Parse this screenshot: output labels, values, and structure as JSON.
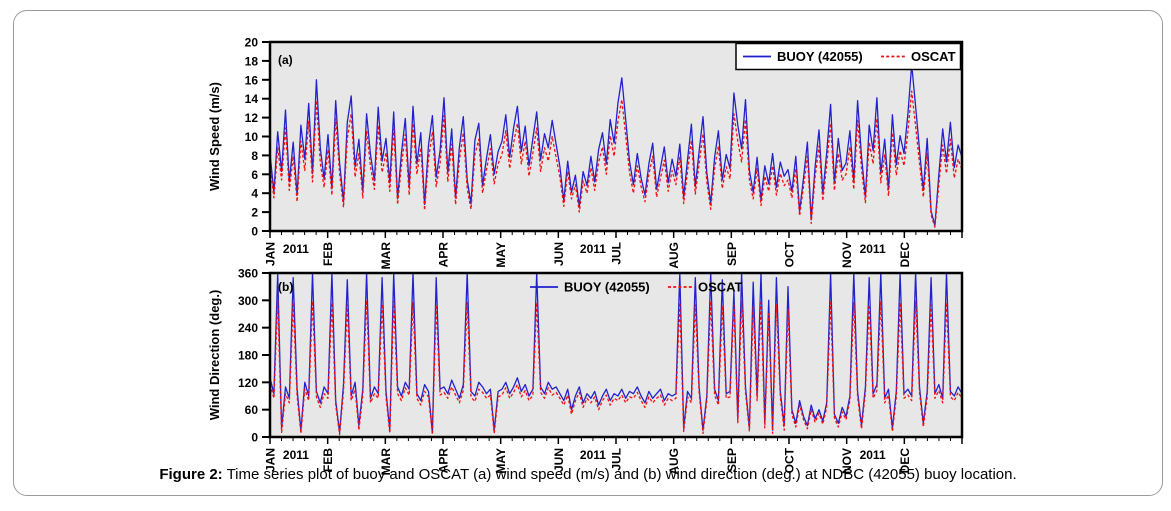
{
  "figure": {
    "caption_label": "Figure 2:",
    "caption_text": " Time series plot of buoy and OSCAT (a) wind speed (m/s) and (b) wind direction (deg.) at NDBC (42055) buoy location."
  },
  "colors": {
    "buoy_line": "#2222CC",
    "oscat_line": "#EE1111",
    "plot_background": "#E7E7E7",
    "frame": "#000000",
    "outer_border": "#9B9B9B"
  },
  "chart_data": [
    {
      "type": "line",
      "panel_label": "(a)",
      "ylabel": "Wind Speed (m/s)",
      "ylim": [
        0,
        20
      ],
      "yticks": [
        0,
        2,
        4,
        6,
        8,
        10,
        12,
        14,
        16,
        18,
        20
      ],
      "grid": false,
      "x_axis": {
        "months": [
          "JAN",
          "FEB",
          "MAR",
          "APR",
          "MAY",
          "JUN",
          "JUL",
          "AUG",
          "SEP",
          "OCT",
          "NOV",
          "DEC"
        ],
        "year_label": "2011",
        "year_positions": [
          0.45,
          5.6,
          10.45
        ]
      },
      "legend": {
        "boxed": true,
        "position": "top-right",
        "entries": [
          {
            "label": "BUOY (42055)",
            "color": "#2222CC",
            "dash": false
          },
          {
            "label": "OSCAT",
            "color": "#EE1111",
            "dash": true
          }
        ]
      },
      "series": [
        {
          "name": "BUOY (42055)",
          "color": "#2222CC",
          "dash": false,
          "values": [
            8.2,
            4.1,
            10.5,
            6.3,
            12.8,
            5.2,
            9.4,
            3.8,
            11.2,
            7.6,
            13.5,
            6.1,
            16.0,
            8.8,
            5.5,
            10.2,
            4.5,
            13.8,
            7.2,
            3.1,
            11.5,
            14.3,
            6.8,
            9.7,
            4.2,
            12.4,
            8.1,
            5.3,
            13.1,
            7.4,
            9.8,
            5.1,
            12.6,
            3.4,
            8.2,
            11.9,
            4.6,
            13.2,
            7.1,
            10.4,
            2.8,
            9.1,
            12.2,
            5.7,
            8.5,
            14.1,
            6.2,
            10.8,
            3.5,
            8.9,
            12.1,
            5.4,
            2.9,
            9.6,
            11.4,
            4.8,
            7.7,
            10.2,
            6.0,
            8.4,
            9.5,
            12.3,
            7.8,
            10.9,
            13.2,
            8.4,
            11.1,
            6.9,
            9.8,
            12.6,
            7.5,
            10.3,
            8.8,
            11.7,
            9.2,
            6.8,
            3.2,
            7.4,
            4.1,
            5.9,
            2.6,
            6.3,
            4.8,
            7.9,
            5.2,
            8.6,
            10.4,
            7.1,
            11.8,
            9.3,
            13.5,
            16.2,
            11.8,
            7.4,
            4.9,
            8.2,
            5.6,
            3.8,
            7.1,
            9.3,
            4.4,
            6.7,
            8.9,
            5.1,
            7.6,
            5.8,
            9.2,
            3.6,
            7.5,
            11.3,
            4.7,
            8.4,
            12.1,
            6.2,
            2.9,
            7.8,
            10.6,
            5.4,
            8.1,
            6.6,
            14.6,
            11.2,
            8.7,
            13.9,
            6.4,
            4.1,
            7.8,
            3.3,
            6.9,
            5.0,
            8.2,
            4.6,
            7.3,
            5.8,
            6.5,
            4.2,
            7.9,
            2.1,
            5.6,
            9.4,
            1.2,
            6.8,
            10.7,
            3.9,
            8.3,
            13.4,
            5.1,
            9.8,
            6.4,
            7.2,
            10.6,
            5.3,
            13.8,
            7.9,
            3.6,
            11.2,
            8.5,
            14.1,
            6.1,
            9.7,
            4.4,
            12.3,
            7.0,
            10.1,
            8.2,
            12.4,
            17.6,
            13.2,
            8.6,
            4.3,
            9.8,
            2.1,
            0.6,
            5.9,
            10.8,
            7.3,
            11.5,
            6.7,
            9.1,
            7.8
          ]
        },
        {
          "name": "OSCAT",
          "color": "#EE1111",
          "dash": true,
          "values": [
            7.0,
            3.5,
            8.8,
            5.4,
            10.9,
            4.3,
            7.9,
            3.1,
            9.5,
            6.4,
            11.6,
            5.2,
            13.8,
            7.2,
            4.6,
            8.6,
            3.8,
            11.9,
            6.1,
            2.5,
            9.8,
            12.4,
            5.7,
            8.2,
            3.5,
            10.6,
            6.8,
            4.4,
            11.2,
            6.2,
            8.3,
            4.2,
            10.8,
            2.8,
            6.9,
            10.2,
            3.8,
            11.4,
            6.0,
            8.8,
            2.2,
            7.6,
            10.5,
            4.7,
            7.2,
            12.2,
            5.2,
            9.2,
            2.8,
            7.5,
            10.4,
            4.5,
            2.3,
            8.1,
            9.7,
            4.0,
            6.5,
            8.7,
            5.0,
            7.1,
            8.1,
            10.6,
            6.6,
            9.3,
            11.4,
            7.1,
            9.5,
            5.8,
            8.3,
            10.9,
            6.3,
            8.8,
            7.4,
            10.0,
            7.8,
            5.7,
            2.6,
            6.3,
            3.4,
            4.9,
            2.0,
            5.3,
            4.0,
            6.7,
            4.3,
            7.3,
            8.9,
            6.0,
            10.1,
            7.9,
            11.6,
            13.9,
            10.1,
            6.2,
            4.0,
            6.9,
            4.7,
            3.1,
            6.0,
            7.9,
            3.6,
            5.6,
            7.5,
            4.2,
            6.4,
            4.9,
            7.8,
            2.9,
            6.3,
            9.6,
            3.9,
            7.1,
            10.3,
            5.2,
            2.3,
            6.6,
            9.0,
            4.5,
            6.8,
            5.5,
            12.4,
            9.5,
            7.3,
            11.8,
            5.4,
            3.4,
            6.6,
            2.7,
            5.8,
            4.2,
            6.9,
            3.8,
            6.1,
            4.8,
            5.4,
            3.5,
            6.6,
            1.6,
            4.7,
            7.9,
            0.8,
            5.7,
            9.0,
            3.2,
            7.0,
            11.4,
            4.3,
            8.2,
            5.4,
            6.0,
            8.9,
            4.4,
            11.7,
            6.6,
            3.0,
            9.4,
            7.1,
            11.9,
            5.1,
            8.1,
            3.7,
            10.4,
            5.9,
            8.5,
            6.9,
            10.5,
            14.8,
            11.1,
            7.2,
            3.6,
            8.2,
            1.7,
            0.4,
            4.9,
            9.1,
            6.1,
            9.7,
            5.6,
            7.6,
            6.5
          ]
        }
      ]
    },
    {
      "type": "line",
      "panel_label": "(b)",
      "ylabel": "Wind Direction (deg.)",
      "ylim": [
        0,
        360
      ],
      "yticks": [
        0,
        60,
        120,
        180,
        240,
        300,
        360
      ],
      "grid": false,
      "x_axis": {
        "months": [
          "JAN",
          "FEB",
          "MAR",
          "APR",
          "MAY",
          "JUN",
          "JUL",
          "AUG",
          "SEP",
          "OCT",
          "NOV",
          "DEC"
        ],
        "year_label": "2011",
        "year_positions": [
          0.45,
          5.6,
          10.45
        ]
      },
      "legend": {
        "boxed": false,
        "position": "top-center-left",
        "entries": [
          {
            "label": "BUOY (42055)",
            "color": "#2222CC",
            "dash": false
          },
          {
            "label": "OSCAT",
            "color": "#EE1111",
            "dash": true
          }
        ]
      },
      "series": [
        {
          "name": "BUOY (42055)",
          "color": "#2222CC",
          "dash": false,
          "values": [
            130,
            95,
            360,
            20,
            110,
            85,
            350,
            105,
            15,
            120,
            90,
            360,
            100,
            75,
            110,
            95,
            360,
            80,
            10,
            115,
            345,
            90,
            120,
            25,
            105,
            360,
            85,
            110,
            95,
            350,
            100,
            15,
            360,
            110,
            90,
            120,
            105,
            360,
            95,
            80,
            115,
            100,
            10,
            350,
            105,
            110,
            95,
            125,
            105,
            85,
            115,
            360,
            100,
            90,
            120,
            110,
            95,
            105,
            15,
            100,
            105,
            120,
            95,
            110,
            130,
            100,
            115,
            90,
            105,
            360,
            110,
            95,
            120,
            105,
            110,
            95,
            80,
            105,
            60,
            90,
            110,
            75,
            95,
            85,
            100,
            70,
            90,
            105,
            80,
            95,
            90,
            105,
            85,
            100,
            95,
            110,
            90,
            75,
            100,
            85,
            95,
            105,
            80,
            95,
            90,
            95,
            360,
            20,
            100,
            85,
            350,
            110,
            15,
            90,
            360,
            105,
            80,
            345,
            95,
            100,
            320,
            40,
            360,
            110,
            20,
            340,
            90,
            360,
            30,
            300,
            15,
            350,
            100,
            25,
            330,
            60,
            30,
            80,
            45,
            25,
            70,
            40,
            60,
            35,
            75,
            360,
            50,
            30,
            65,
            45,
            90,
            360,
            100,
            25,
            110,
            350,
            95,
            115,
            360,
            85,
            105,
            20,
            100,
            360,
            95,
            105,
            90,
            360,
            110,
            30,
            100,
            350,
            95,
            115,
            85,
            360,
            100,
            90,
            110,
            95
          ]
        },
        {
          "name": "OSCAT",
          "color": "#EE1111",
          "dash": true,
          "values": [
            115,
            85,
            300,
            10,
            95,
            75,
            295,
            90,
            8,
            105,
            80,
            298,
            88,
            65,
            95,
            85,
            295,
            70,
            5,
            100,
            290,
            80,
            105,
            15,
            92,
            300,
            75,
            95,
            85,
            292,
            88,
            8,
            298,
            95,
            80,
            108,
            92,
            295,
            85,
            70,
            100,
            88,
            5,
            290,
            92,
            98,
            85,
            110,
            92,
            75,
            102,
            295,
            88,
            78,
            105,
            98,
            85,
            92,
            8,
            88,
            92,
            108,
            85,
            98,
            115,
            88,
            102,
            80,
            92,
            295,
            98,
            85,
            108,
            92,
            98,
            85,
            70,
            92,
            50,
            80,
            98,
            65,
            85,
            75,
            88,
            60,
            80,
            92,
            70,
            85,
            80,
            92,
            75,
            88,
            85,
            98,
            80,
            65,
            88,
            75,
            85,
            92,
            70,
            85,
            80,
            85,
            295,
            12,
            88,
            75,
            290,
            98,
            8,
            80,
            298,
            92,
            70,
            288,
            85,
            88,
            290,
            30,
            298,
            98,
            12,
            285,
            80,
            295,
            20,
            270,
            8,
            290,
            88,
            15,
            280,
            50,
            22,
            70,
            38,
            18,
            60,
            32,
            52,
            28,
            65,
            295,
            42,
            22,
            55,
            38,
            80,
            295,
            88,
            18,
            98,
            290,
            85,
            102,
            298,
            75,
            92,
            12,
            88,
            295,
            85,
            92,
            80,
            298,
            98,
            22,
            88,
            290,
            85,
            102,
            75,
            295,
            88,
            80,
            98,
            85
          ]
        }
      ]
    }
  ]
}
